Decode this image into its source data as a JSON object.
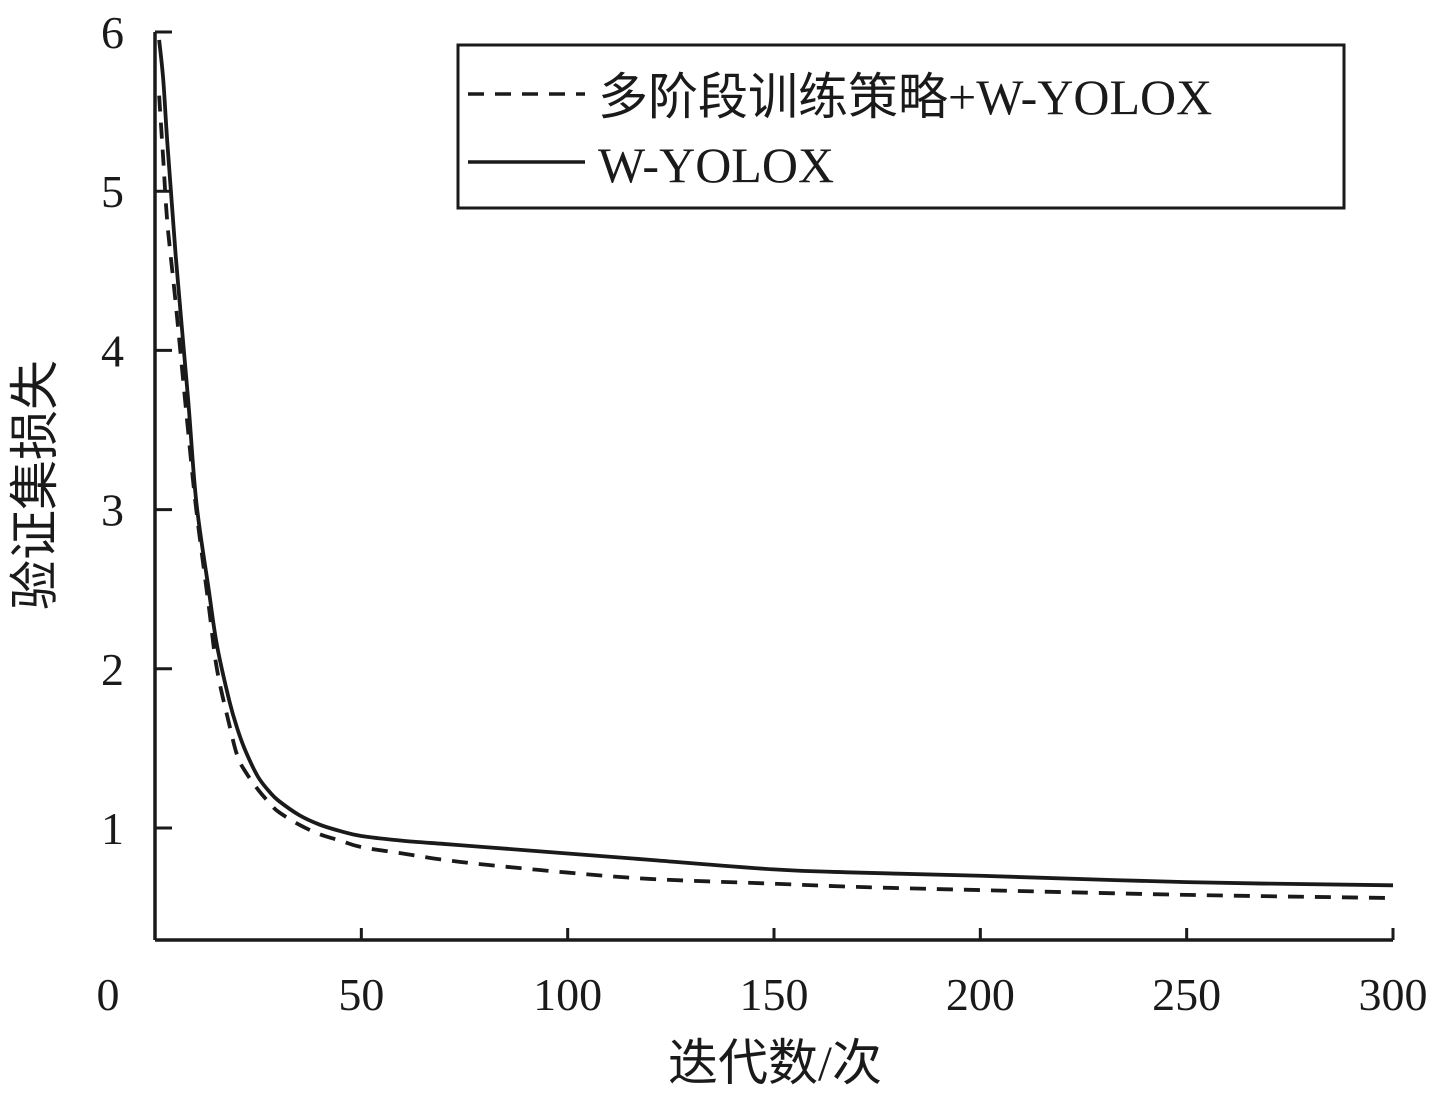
{
  "chart_data": {
    "type": "line",
    "xlabel": "迭代数/次",
    "ylabel": "验证集损失",
    "xlim": [
      0,
      300
    ],
    "ylim": [
      0.3,
      6
    ],
    "x_ticks": [
      0,
      50,
      100,
      150,
      200,
      250,
      300
    ],
    "y_ticks": [
      1,
      2,
      3,
      4,
      5,
      6
    ],
    "grid": false,
    "legend_position": "top-right",
    "series": [
      {
        "name": "多阶段训练策略+W-YOLOX",
        "style": "dashed",
        "color": "#1a1a1a",
        "x": [
          1,
          2,
          3,
          5,
          8,
          10,
          13,
          15,
          18,
          20,
          22,
          25,
          28,
          30,
          35,
          40,
          45,
          50,
          60,
          70,
          80,
          100,
          120,
          150,
          170,
          200,
          250,
          300
        ],
        "y": [
          5.6,
          5.2,
          4.8,
          4.3,
          3.5,
          3.0,
          2.4,
          2.0,
          1.65,
          1.45,
          1.35,
          1.24,
          1.15,
          1.1,
          1.02,
          0.96,
          0.92,
          0.88,
          0.84,
          0.8,
          0.77,
          0.72,
          0.68,
          0.65,
          0.63,
          0.61,
          0.58,
          0.56
        ]
      },
      {
        "name": "W-YOLOX",
        "style": "solid",
        "color": "#1a1a1a",
        "x": [
          1,
          2,
          3,
          5,
          8,
          10,
          13,
          15,
          18,
          20,
          22,
          25,
          28,
          30,
          35,
          40,
          45,
          50,
          60,
          70,
          80,
          100,
          120,
          150,
          170,
          200,
          250,
          300
        ],
        "y": [
          5.95,
          5.7,
          5.3,
          4.6,
          3.7,
          3.05,
          2.5,
          2.15,
          1.8,
          1.62,
          1.48,
          1.32,
          1.22,
          1.17,
          1.08,
          1.02,
          0.98,
          0.95,
          0.92,
          0.9,
          0.88,
          0.84,
          0.8,
          0.74,
          0.72,
          0.7,
          0.66,
          0.64
        ]
      }
    ]
  }
}
